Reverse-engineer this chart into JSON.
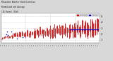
{
  "bg_color": "#d8d8d8",
  "plot_bg_color": "#ffffff",
  "text_color": "#000000",
  "grid_color": "#aaaaaa",
  "bar_color": "#cc0000",
  "dot_color": "#0000cc",
  "avg_line_color": "#0000cc",
  "avg_line_value": 2.8,
  "avg_line_start_x": 70,
  "ylim": [
    0.5,
    5.5
  ],
  "xlim": [
    0,
    100
  ],
  "n_points": 100,
  "seed": 42,
  "legend_labels": [
    "Normalized",
    "Average"
  ],
  "legend_colors": [
    "#cc0000",
    "#0000cc"
  ],
  "yticks": [
    1,
    2,
    3,
    4,
    5
  ],
  "n_xticks": 48,
  "title_lines": [
    "Milwaukee Weather Wind Direction",
    "Normalized and Average",
    "(24 Hours) (Old)"
  ]
}
